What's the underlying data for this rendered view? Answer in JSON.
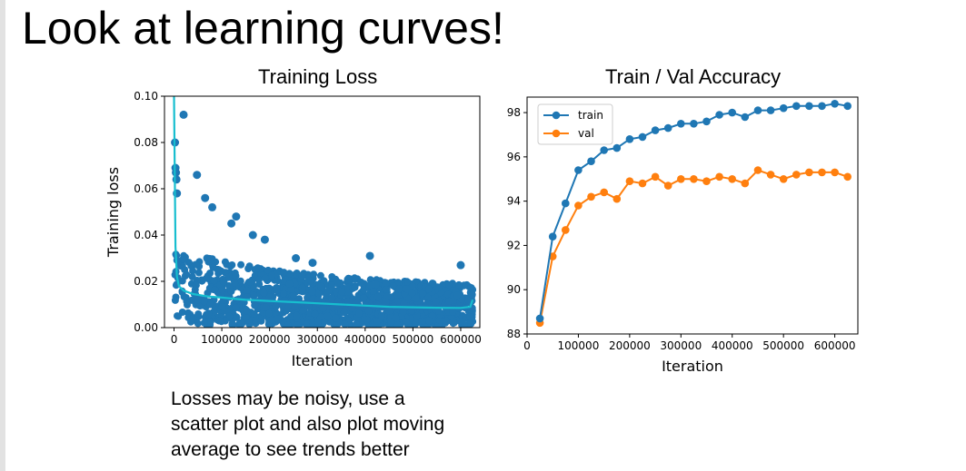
{
  "slide": {
    "title": "Look at learning curves!",
    "caption": [
      "Losses may be noisy, use a",
      "scatter plot and also plot moving",
      "average to see trends better"
    ]
  },
  "colors": {
    "blue": "#1f77b4",
    "orange": "#ff7f0e",
    "cyan": "#17becf",
    "axis": "#000000"
  },
  "chart_data": [
    {
      "type": "scatter",
      "title": "Training Loss",
      "xlabel": "Iteration",
      "ylabel": "Training loss",
      "xlim": [
        -20000,
        640000
      ],
      "ylim": [
        0.0,
        0.1
      ],
      "xticks": [
        0,
        100000,
        200000,
        300000,
        400000,
        500000,
        600000
      ],
      "xtick_labels": [
        "0",
        "100000",
        "200000",
        "300000",
        "400000",
        "500000",
        "600000"
      ],
      "yticks": [
        0.0,
        0.02,
        0.04,
        0.06,
        0.08,
        0.1
      ],
      "ytick_labels": [
        "0.00",
        "0.02",
        "0.04",
        "0.06",
        "0.08",
        "0.10"
      ],
      "scatter_outliers": {
        "x": [
          2000,
          3000,
          4000,
          5000,
          6000,
          20000,
          48000,
          65000,
          120000,
          130000,
          80000,
          165000,
          190000,
          255000,
          290000,
          410000,
          600000
        ],
        "y": [
          0.08,
          0.069,
          0.067,
          0.064,
          0.058,
          0.092,
          0.066,
          0.056,
          0.045,
          0.048,
          0.052,
          0.04,
          0.038,
          0.03,
          0.028,
          0.031,
          0.027
        ]
      },
      "scatter_envelope": {
        "x": [
          0,
          5000,
          20000,
          50000,
          100000,
          150000,
          200000,
          300000,
          400000,
          500000,
          600000,
          625000
        ],
        "upper": [
          0.045,
          0.04,
          0.034,
          0.031,
          0.029,
          0.027,
          0.025,
          0.023,
          0.021,
          0.02,
          0.019,
          0.018
        ],
        "lower": [
          0.01,
          0.005,
          0.002,
          0.001,
          0.001,
          0.001,
          0.001,
          0.001,
          0.001,
          0.001,
          0.001,
          0.001
        ]
      },
      "moving_average": {
        "name": "moving average",
        "x": [
          0,
          3000,
          6000,
          10000,
          20000,
          40000,
          70000,
          100000,
          150000,
          200000,
          250000,
          300000,
          350000,
          400000,
          450000,
          500000,
          550000,
          600000,
          620000,
          625000
        ],
        "y": [
          0.1,
          0.035,
          0.022,
          0.018,
          0.016,
          0.0145,
          0.0135,
          0.013,
          0.012,
          0.0115,
          0.011,
          0.0105,
          0.01,
          0.0095,
          0.009,
          0.0088,
          0.0086,
          0.0085,
          0.009,
          0.012
        ]
      }
    },
    {
      "type": "line",
      "title": "Train / Val Accuracy",
      "xlabel": "Iteration",
      "ylabel": "",
      "xlim": [
        0,
        645000
      ],
      "ylim": [
        88,
        98.7
      ],
      "xticks": [
        0,
        100000,
        200000,
        300000,
        400000,
        500000,
        600000
      ],
      "xtick_labels": [
        "0",
        "100000",
        "200000",
        "300000",
        "400000",
        "500000",
        "600000"
      ],
      "yticks": [
        88,
        90,
        92,
        94,
        96,
        98
      ],
      "ytick_labels": [
        "88",
        "90",
        "92",
        "94",
        "96",
        "98"
      ],
      "legend": "top-left",
      "x": [
        25000,
        50000,
        75000,
        100000,
        125000,
        150000,
        175000,
        200000,
        225000,
        250000,
        275000,
        300000,
        325000,
        350000,
        375000,
        400000,
        425000,
        450000,
        475000,
        500000,
        525000,
        550000,
        575000,
        600000,
        625000
      ],
      "series": [
        {
          "name": "train",
          "values": [
            88.7,
            92.4,
            93.9,
            95.4,
            95.8,
            96.3,
            96.4,
            96.8,
            96.9,
            97.2,
            97.3,
            97.5,
            97.5,
            97.6,
            97.9,
            98.0,
            97.8,
            98.1,
            98.1,
            98.2,
            98.3,
            98.3,
            98.3,
            98.4,
            98.3
          ]
        },
        {
          "name": "val",
          "values": [
            88.5,
            91.5,
            92.7,
            93.8,
            94.2,
            94.4,
            94.1,
            94.9,
            94.8,
            95.1,
            94.7,
            95.0,
            95.0,
            94.9,
            95.1,
            95.0,
            94.8,
            95.4,
            95.2,
            95.0,
            95.2,
            95.3,
            95.3,
            95.3,
            95.1
          ]
        }
      ]
    }
  ]
}
